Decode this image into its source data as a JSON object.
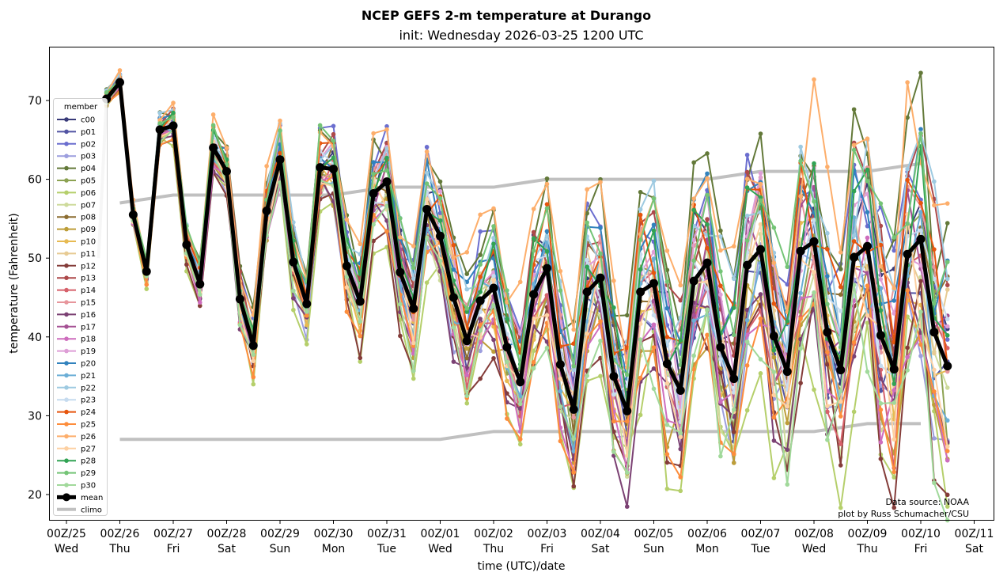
{
  "chart_data": {
    "type": "line",
    "title": "NCEP GEFS 2-m temperature at Durango",
    "subtitle": "init: Wednesday 2026-03-25 1200 UTC",
    "xlabel": "time (UTC)/date",
    "ylabel": "temperature (Fahrenheit)",
    "ylim": [
      16.8,
      76.8
    ],
    "xlim_days": [
      -0.1,
      16.1
    ],
    "yticks": [
      20,
      30,
      40,
      50,
      60,
      70
    ],
    "xticks": [
      {
        "day": 0,
        "label": "00Z/25",
        "dow": "Wed"
      },
      {
        "day": 1,
        "label": "00Z/26",
        "dow": "Thu"
      },
      {
        "day": 2,
        "label": "00Z/27",
        "dow": "Fri"
      },
      {
        "day": 3,
        "label": "00Z/28",
        "dow": "Sat"
      },
      {
        "day": 4,
        "label": "00Z/29",
        "dow": "Sun"
      },
      {
        "day": 5,
        "label": "00Z/30",
        "dow": "Mon"
      },
      {
        "day": 6,
        "label": "00Z/31",
        "dow": "Tue"
      },
      {
        "day": 7,
        "label": "00Z/01",
        "dow": "Wed"
      },
      {
        "day": 8,
        "label": "00Z/02",
        "dow": "Thu"
      },
      {
        "day": 9,
        "label": "00Z/03",
        "dow": "Fri"
      },
      {
        "day": 10,
        "label": "00Z/04",
        "dow": "Sat"
      },
      {
        "day": 11,
        "label": "00Z/05",
        "dow": "Sun"
      },
      {
        "day": 12,
        "label": "00Z/06",
        "dow": "Mon"
      },
      {
        "day": 13,
        "label": "00Z/07",
        "dow": "Tue"
      },
      {
        "day": 14,
        "label": "00Z/08",
        "dow": "Wed"
      },
      {
        "day": 15,
        "label": "00Z/09",
        "dow": "Thu"
      },
      {
        "day": 16,
        "label": "00Z/10",
        "dow": "Fri"
      },
      {
        "day": 17,
        "label": "00Z/11",
        "dow": "Sat"
      }
    ],
    "time_start_day": 0.75,
    "time_step_hours": 6,
    "mean": {
      "name": "mean",
      "color": "#000000",
      "values": [
        70.2,
        72.3,
        55.5,
        48.3,
        66.3,
        66.8,
        51.7,
        46.7,
        64.0,
        61.0,
        44.8,
        38.9,
        56.0,
        62.5,
        49.5,
        44.2,
        61.5,
        61.3,
        49.0,
        44.5,
        58.2,
        59.7,
        48.2,
        43.6,
        56.2,
        52.8,
        45.0,
        39.5,
        44.6,
        46.2,
        38.7,
        34.3,
        45.4,
        48.7,
        36.5,
        30.8,
        45.7,
        47.5,
        35.0,
        30.6,
        45.7,
        46.8,
        36.6,
        33.2,
        47.1,
        49.4,
        38.7,
        34.7,
        49.1,
        51.1,
        40.1,
        35.6,
        50.9,
        52.1,
        40.6,
        35.8,
        50.1,
        51.5,
        40.2,
        35.9,
        50.5,
        52.4,
        40.6,
        36.3
      ]
    },
    "climo": {
      "name": "climo",
      "color": "#c0c0c0",
      "days": [
        1,
        2,
        3,
        4,
        5,
        6,
        7,
        8,
        9,
        10,
        11,
        12,
        13,
        14,
        15,
        16
      ],
      "max": [
        57,
        58,
        58,
        58,
        58,
        59,
        59,
        59,
        60,
        60,
        60,
        60,
        61,
        61,
        61,
        62
      ],
      "min": [
        27,
        27,
        27,
        27,
        27,
        27,
        27,
        28,
        28,
        28,
        28,
        28,
        28,
        28,
        29,
        29
      ],
      "initial_segment": {
        "day_from": 0.6,
        "value_from": 50.0,
        "day_to": 0.75,
        "value_to": 70.2
      }
    },
    "legend": {
      "title": "member",
      "placement": "upper-left"
    },
    "members": [
      {
        "name": "c00",
        "color": "#393b79",
        "bias": 0.6
      },
      {
        "name": "p01",
        "color": "#5254a3",
        "bias": -0.4
      },
      {
        "name": "p02",
        "color": "#6b6ecf",
        "bias": 1.1
      },
      {
        "name": "p03",
        "color": "#9c9ede",
        "bias": -0.8
      },
      {
        "name": "p04",
        "color": "#637939",
        "bias": 1.5
      },
      {
        "name": "p05",
        "color": "#8ca252",
        "bias": -0.2
      },
      {
        "name": "p06",
        "color": "#b5cf6b",
        "bias": -1.6
      },
      {
        "name": "p07",
        "color": "#cedb9c",
        "bias": -0.6
      },
      {
        "name": "p08",
        "color": "#8c6d31",
        "bias": 0.3
      },
      {
        "name": "p09",
        "color": "#bd9e39",
        "bias": -0.9
      },
      {
        "name": "p10",
        "color": "#e7ba52",
        "bias": -0.3
      },
      {
        "name": "p11",
        "color": "#e7cb94",
        "bias": 0.2
      },
      {
        "name": "p12",
        "color": "#843c39",
        "bias": -1.3
      },
      {
        "name": "p13",
        "color": "#ad494a",
        "bias": 0.9
      },
      {
        "name": "p14",
        "color": "#d6616b",
        "bias": -0.5
      },
      {
        "name": "p15",
        "color": "#e7969c",
        "bias": 0.4
      },
      {
        "name": "p16",
        "color": "#7b4173",
        "bias": -1.1
      },
      {
        "name": "p17",
        "color": "#a55194",
        "bias": 0.0
      },
      {
        "name": "p18",
        "color": "#ce6dbd",
        "bias": -0.7
      },
      {
        "name": "p19",
        "color": "#de9ed6",
        "bias": 0.5
      },
      {
        "name": "p20",
        "color": "#3182bd",
        "bias": 0.8
      },
      {
        "name": "p21",
        "color": "#6baed6",
        "bias": -0.1
      },
      {
        "name": "p22",
        "color": "#9ecae1",
        "bias": 1.2
      },
      {
        "name": "p23",
        "color": "#c6dbef",
        "bias": 0.1
      },
      {
        "name": "p24",
        "color": "#e6550d",
        "bias": 0.7
      },
      {
        "name": "p25",
        "color": "#fd8d3c",
        "bias": -1.0
      },
      {
        "name": "p26",
        "color": "#fdae6b",
        "bias": 1.7
      },
      {
        "name": "p27",
        "color": "#fdd0a2",
        "bias": -0.3
      },
      {
        "name": "p28",
        "color": "#31a354",
        "bias": 0.6
      },
      {
        "name": "p29",
        "color": "#74c476",
        "bias": 1.0
      },
      {
        "name": "p30",
        "color": "#a1d99b",
        "bias": -1.2
      }
    ],
    "annotations": [
      "Data source: NOAA",
      "plot by Russ Schumacher/CSU"
    ],
    "grid": false
  }
}
